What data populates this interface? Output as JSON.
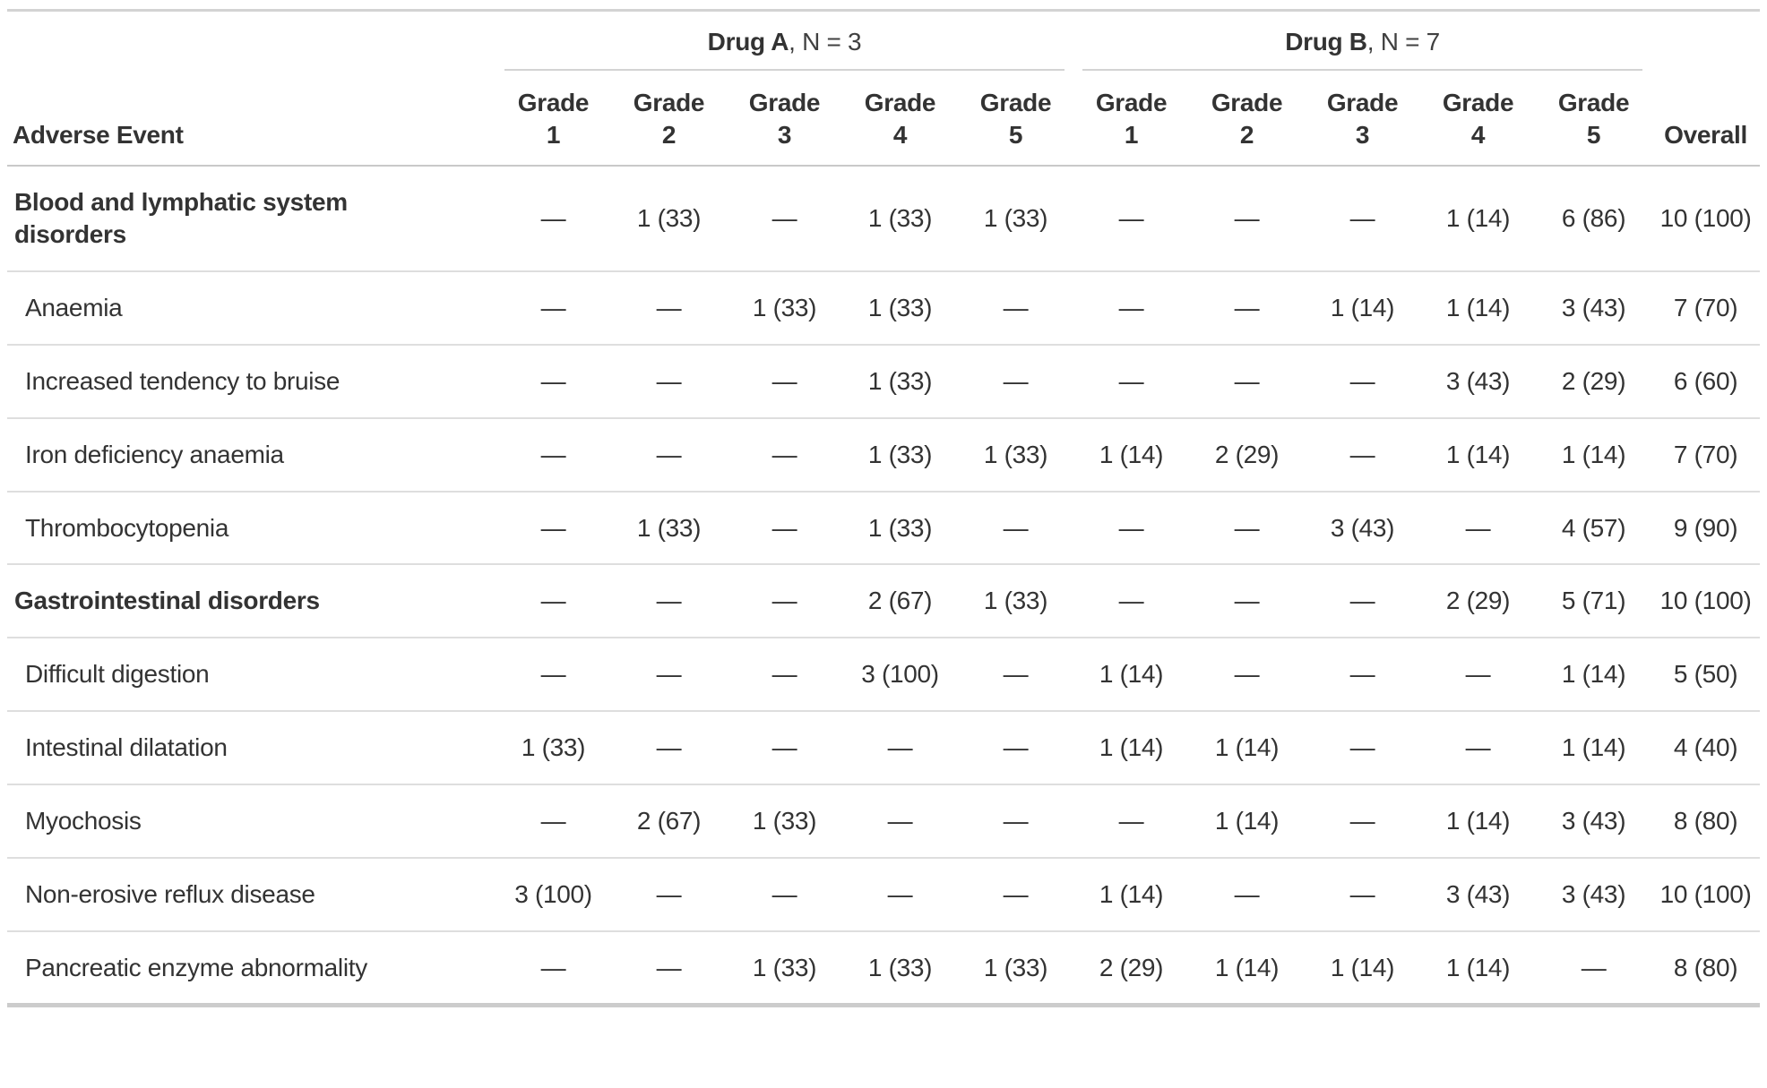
{
  "chart_data": {
    "type": "table",
    "row_header_label": "Adverse Event",
    "overall_label": "Overall",
    "spanners": [
      {
        "name": "Drug A",
        "n_suffix": ", N = 3",
        "columns": [
          "Grade 1",
          "Grade 2",
          "Grade 3",
          "Grade 4",
          "Grade 5"
        ]
      },
      {
        "name": "Drug B",
        "n_suffix": ", N = 7",
        "columns": [
          "Grade 1",
          "Grade 2",
          "Grade 3",
          "Grade 4",
          "Grade 5"
        ]
      }
    ],
    "rows": [
      {
        "label": "Blood and lymphatic system disorders",
        "style": "group",
        "values": [
          "—",
          "1 (33)",
          "—",
          "1 (33)",
          "1 (33)",
          "—",
          "—",
          "—",
          "1 (14)",
          "6 (86)",
          "10 (100)"
        ]
      },
      {
        "label": "Anaemia",
        "style": "sub",
        "values": [
          "—",
          "—",
          "1 (33)",
          "1 (33)",
          "—",
          "—",
          "—",
          "1 (14)",
          "1 (14)",
          "3 (43)",
          "7 (70)"
        ]
      },
      {
        "label": "Increased tendency to bruise",
        "style": "sub",
        "values": [
          "—",
          "—",
          "—",
          "1 (33)",
          "—",
          "—",
          "—",
          "—",
          "3 (43)",
          "2 (29)",
          "6 (60)"
        ]
      },
      {
        "label": "Iron deficiency anaemia",
        "style": "sub",
        "values": [
          "—",
          "—",
          "—",
          "1 (33)",
          "1 (33)",
          "1 (14)",
          "2 (29)",
          "—",
          "1 (14)",
          "1 (14)",
          "7 (70)"
        ]
      },
      {
        "label": "Thrombocytopenia",
        "style": "sub",
        "values": [
          "—",
          "1 (33)",
          "—",
          "1 (33)",
          "—",
          "—",
          "—",
          "3 (43)",
          "—",
          "4 (57)",
          "9 (90)"
        ]
      },
      {
        "label": "Gastrointestinal disorders",
        "style": "group",
        "values": [
          "—",
          "—",
          "—",
          "2 (67)",
          "1 (33)",
          "—",
          "—",
          "—",
          "2 (29)",
          "5 (71)",
          "10 (100)"
        ]
      },
      {
        "label": "Difficult digestion",
        "style": "sub",
        "values": [
          "—",
          "—",
          "—",
          "3 (100)",
          "—",
          "1 (14)",
          "—",
          "—",
          "—",
          "1 (14)",
          "5 (50)"
        ]
      },
      {
        "label": "Intestinal dilatation",
        "style": "sub",
        "values": [
          "1 (33)",
          "—",
          "—",
          "—",
          "—",
          "1 (14)",
          "1 (14)",
          "—",
          "—",
          "1 (14)",
          "4 (40)"
        ]
      },
      {
        "label": "Myochosis",
        "style": "sub",
        "values": [
          "—",
          "2 (67)",
          "1 (33)",
          "—",
          "—",
          "—",
          "1 (14)",
          "—",
          "1 (14)",
          "3 (43)",
          "8 (80)"
        ]
      },
      {
        "label": "Non-erosive reflux disease",
        "style": "sub",
        "values": [
          "3 (100)",
          "—",
          "—",
          "—",
          "—",
          "1 (14)",
          "—",
          "—",
          "3 (43)",
          "3 (43)",
          "10 (100)"
        ]
      },
      {
        "label": "Pancreatic enzyme abnormality",
        "style": "sub",
        "values": [
          "—",
          "—",
          "1 (33)",
          "1 (33)",
          "1 (33)",
          "2 (29)",
          "1 (14)",
          "1 (14)",
          "1 (14)",
          "—",
          "8 (80)"
        ]
      }
    ],
    "colors": {
      "text": "#333333",
      "border_strong": "#c9c9c9",
      "border_light": "#dedede",
      "background": "#ffffff"
    },
    "layout": {
      "grid": "horizontal-rules-only",
      "spanner_underline": true,
      "value_alignment": "center",
      "missing_value_glyph": "—"
    }
  }
}
